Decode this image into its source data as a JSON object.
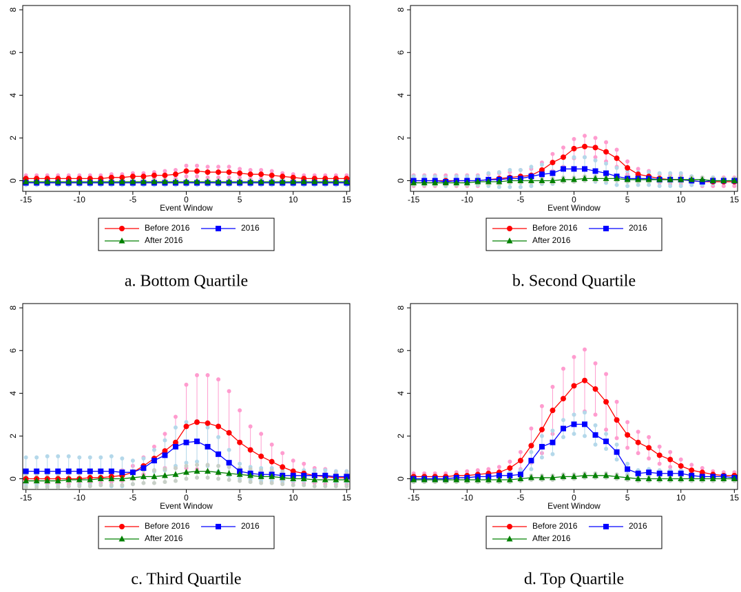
{
  "chart_data": [
    {
      "type": "line",
      "caption": "a. Bottom Quartile",
      "xlabel": "Event Window",
      "x": [
        -15,
        -14,
        -13,
        -12,
        -11,
        -10,
        -9,
        -8,
        -7,
        -6,
        -5,
        -4,
        -3,
        -2,
        -1,
        0,
        1,
        2,
        3,
        4,
        5,
        6,
        7,
        8,
        9,
        10,
        11,
        12,
        13,
        14,
        15
      ],
      "xlim": [
        -15.3,
        15.3
      ],
      "ylim": [
        -0.5,
        8.2
      ],
      "xticks": [
        -15,
        -10,
        -5,
        0,
        5,
        10,
        15
      ],
      "yticks": [
        0,
        2,
        4,
        6,
        8
      ],
      "series": [
        {
          "name": "Before 2016",
          "color": "#ff0000",
          "ci_color": "#ff9ccf",
          "marker": "circle",
          "values": [
            0.1,
            0.1,
            0.1,
            0.1,
            0.1,
            0.1,
            0.1,
            0.1,
            0.15,
            0.15,
            0.2,
            0.2,
            0.25,
            0.25,
            0.3,
            0.45,
            0.45,
            0.4,
            0.4,
            0.4,
            0.35,
            0.3,
            0.3,
            0.25,
            0.2,
            0.15,
            0.1,
            0.1,
            0.1,
            0.1,
            0.1
          ],
          "errors": [
            0.15,
            0.15,
            0.15,
            0.15,
            0.15,
            0.15,
            0.15,
            0.15,
            0.15,
            0.15,
            0.15,
            0.15,
            0.15,
            0.2,
            0.2,
            0.25,
            0.25,
            0.25,
            0.25,
            0.25,
            0.2,
            0.2,
            0.2,
            0.2,
            0.15,
            0.15,
            0.15,
            0.15,
            0.15,
            0.15,
            0.15
          ]
        },
        {
          "name": "2016",
          "color": "#0000ff",
          "ci_color": "#b4d8ea",
          "marker": "square",
          "values": [
            -0.1,
            -0.1,
            -0.1,
            -0.1,
            -0.1,
            -0.1,
            -0.1,
            -0.1,
            -0.1,
            -0.1,
            -0.1,
            -0.1,
            -0.1,
            -0.1,
            -0.1,
            -0.1,
            -0.1,
            -0.1,
            -0.1,
            -0.1,
            -0.1,
            -0.1,
            -0.1,
            -0.1,
            -0.1,
            -0.1,
            -0.1,
            -0.1,
            -0.1,
            -0.1,
            -0.1
          ],
          "errors": [
            0.1,
            0.1,
            0.1,
            0.1,
            0.1,
            0.1,
            0.1,
            0.1,
            0.1,
            0.1,
            0.1,
            0.1,
            0.1,
            0.1,
            0.1,
            0.1,
            0.1,
            0.1,
            0.1,
            0.1,
            0.1,
            0.1,
            0.1,
            0.1,
            0.1,
            0.1,
            0.1,
            0.1,
            0.1,
            0.1,
            0.1
          ]
        },
        {
          "name": "After 2016",
          "color": "#008000",
          "ci_color": "#c8d0c8",
          "marker": "triangle",
          "values": [
            -0.05,
            -0.05,
            -0.05,
            -0.05,
            -0.05,
            -0.05,
            -0.05,
            -0.05,
            -0.05,
            -0.05,
            -0.05,
            -0.05,
            -0.05,
            -0.05,
            -0.05,
            -0.05,
            -0.05,
            -0.05,
            -0.05,
            -0.05,
            -0.05,
            -0.05,
            -0.05,
            -0.05,
            -0.05,
            -0.05,
            -0.05,
            -0.05,
            -0.05,
            -0.05,
            -0.05
          ],
          "errors": [
            0.05,
            0.05,
            0.05,
            0.05,
            0.05,
            0.05,
            0.05,
            0.05,
            0.05,
            0.05,
            0.05,
            0.05,
            0.05,
            0.05,
            0.05,
            0.05,
            0.05,
            0.05,
            0.05,
            0.05,
            0.05,
            0.05,
            0.05,
            0.05,
            0.05,
            0.05,
            0.05,
            0.05,
            0.05,
            0.05,
            0.05
          ]
        }
      ]
    },
    {
      "type": "line",
      "caption": "b. Second Quartile",
      "xlabel": "Event Window",
      "x": [
        -15,
        -14,
        -13,
        -12,
        -11,
        -10,
        -9,
        -8,
        -7,
        -6,
        -5,
        -4,
        -3,
        -2,
        -1,
        0,
        1,
        2,
        3,
        4,
        5,
        6,
        7,
        8,
        9,
        10,
        11,
        12,
        13,
        14,
        15
      ],
      "xlim": [
        -15.3,
        15.3
      ],
      "ylim": [
        -0.5,
        8.2
      ],
      "xticks": [
        -15,
        -10,
        -5,
        0,
        5,
        10,
        15
      ],
      "yticks": [
        0,
        2,
        4,
        6,
        8
      ],
      "series": [
        {
          "name": "Before 2016",
          "color": "#ff0000",
          "ci_color": "#ff9ccf",
          "marker": "circle",
          "values": [
            0,
            0,
            0,
            0,
            0,
            0,
            0,
            0.05,
            0.1,
            0.15,
            0.2,
            0.25,
            0.5,
            0.85,
            1.1,
            1.5,
            1.6,
            1.55,
            1.35,
            1.05,
            0.6,
            0.3,
            0.2,
            0.1,
            0.05,
            0.05,
            0,
            -0.05,
            -0.05,
            -0.05,
            -0.05
          ],
          "errors": [
            0.25,
            0.25,
            0.25,
            0.25,
            0.25,
            0.25,
            0.25,
            0.25,
            0.25,
            0.25,
            0.3,
            0.3,
            0.35,
            0.4,
            0.45,
            0.45,
            0.5,
            0.45,
            0.45,
            0.4,
            0.3,
            0.25,
            0.25,
            0.2,
            0.2,
            0.2,
            0.2,
            0.2,
            0.2,
            0.2,
            0.2
          ]
        },
        {
          "name": "2016",
          "color": "#0000ff",
          "ci_color": "#b4d8ea",
          "marker": "square",
          "values": [
            0,
            0,
            0,
            -0.05,
            0,
            0,
            0,
            0.05,
            0.05,
            0.1,
            0.1,
            0.2,
            0.3,
            0.35,
            0.55,
            0.55,
            0.55,
            0.45,
            0.35,
            0.2,
            0.1,
            0.1,
            0.1,
            0.05,
            0.05,
            0.05,
            0,
            -0.05,
            0,
            0,
            0
          ],
          "errors": [
            0.2,
            0.2,
            0.2,
            0.2,
            0.2,
            0.2,
            0.2,
            0.3,
            0.35,
            0.4,
            0.4,
            0.45,
            0.45,
            0.5,
            0.55,
            0.55,
            0.55,
            0.5,
            0.45,
            0.4,
            0.35,
            0.3,
            0.3,
            0.3,
            0.3,
            0.3,
            0.2,
            0.15,
            0.15,
            0.1,
            0.1
          ]
        },
        {
          "name": "After 2016",
          "color": "#008000",
          "ci_color": "#c8d0c8",
          "marker": "triangle",
          "values": [
            -0.1,
            -0.1,
            -0.1,
            -0.1,
            -0.1,
            -0.1,
            -0.05,
            -0.05,
            -0.05,
            0,
            0,
            0,
            0,
            0,
            0.05,
            0.05,
            0.1,
            0.1,
            0.1,
            0.1,
            0.05,
            0.05,
            0.05,
            0.05,
            0.05,
            0.05,
            0.05,
            0.05,
            0,
            0,
            0
          ],
          "errors": [
            0.1,
            0.1,
            0.1,
            0.1,
            0.1,
            0.1,
            0.1,
            0.1,
            0.1,
            0.1,
            0.1,
            0.1,
            0.1,
            0.1,
            0.1,
            0.1,
            0.1,
            0.1,
            0.1,
            0.1,
            0.1,
            0.1,
            0.1,
            0.1,
            0.1,
            0.1,
            0.1,
            0.1,
            0.1,
            0.1,
            0.1
          ]
        }
      ]
    },
    {
      "type": "line",
      "caption": "c. Third Quartile",
      "xlabel": "Event Window",
      "x": [
        -15,
        -14,
        -13,
        -12,
        -11,
        -10,
        -9,
        -8,
        -7,
        -6,
        -5,
        -4,
        -3,
        -2,
        -1,
        0,
        1,
        2,
        3,
        4,
        5,
        6,
        7,
        8,
        9,
        10,
        11,
        12,
        13,
        14,
        15
      ],
      "xlim": [
        -15.3,
        15.3
      ],
      "ylim": [
        -0.5,
        8.2
      ],
      "xticks": [
        -15,
        -10,
        -5,
        0,
        5,
        10,
        15
      ],
      "yticks": [
        0,
        2,
        4,
        6,
        8
      ],
      "series": [
        {
          "name": "Before 2016",
          "color": "#ff0000",
          "ci_color": "#ff9ccf",
          "marker": "circle",
          "values": [
            0,
            0,
            0,
            0,
            0,
            0,
            0.05,
            0.05,
            0.1,
            0.15,
            0.3,
            0.6,
            0.95,
            1.3,
            1.7,
            2.45,
            2.65,
            2.6,
            2.45,
            2.15,
            1.7,
            1.35,
            1.05,
            0.8,
            0.55,
            0.35,
            0.25,
            0.15,
            0.1,
            0.05,
            0.05
          ],
          "errors": [
            0.25,
            0.25,
            0.25,
            0.25,
            0.25,
            0.25,
            0.25,
            0.25,
            0.25,
            0.25,
            0.3,
            0.4,
            0.55,
            0.8,
            1.2,
            1.95,
            2.2,
            2.25,
            2.2,
            1.95,
            1.5,
            1.1,
            1.05,
            0.8,
            0.65,
            0.5,
            0.45,
            0.35,
            0.35,
            0.3,
            0.3
          ]
        },
        {
          "name": "2016",
          "color": "#0000ff",
          "ci_color": "#b4d8ea",
          "marker": "square",
          "values": [
            0.35,
            0.35,
            0.35,
            0.35,
            0.35,
            0.35,
            0.35,
            0.35,
            0.35,
            0.3,
            0.3,
            0.5,
            0.85,
            1.1,
            1.5,
            1.7,
            1.75,
            1.5,
            1.15,
            0.75,
            0.35,
            0.25,
            0.2,
            0.2,
            0.15,
            0.15,
            0.15,
            0.15,
            0.15,
            0.1,
            0.1
          ],
          "errors": [
            0.65,
            0.65,
            0.7,
            0.7,
            0.7,
            0.65,
            0.65,
            0.65,
            0.7,
            0.65,
            0.55,
            0.45,
            0.5,
            0.7,
            0.9,
            0.95,
            0.95,
            0.9,
            0.8,
            0.6,
            0.35,
            0.3,
            0.3,
            0.3,
            0.3,
            0.25,
            0.25,
            0.25,
            0.25,
            0.25,
            0.25
          ]
        },
        {
          "name": "After 2016",
          "color": "#008000",
          "ci_color": "#c8d0c8",
          "marker": "triangle",
          "values": [
            -0.1,
            -0.1,
            -0.1,
            -0.1,
            -0.05,
            -0.05,
            -0.05,
            0,
            0,
            0,
            0.05,
            0.1,
            0.1,
            0.15,
            0.2,
            0.3,
            0.35,
            0.35,
            0.3,
            0.25,
            0.2,
            0.15,
            0.1,
            0.1,
            0.05,
            0,
            0,
            -0.05,
            -0.05,
            -0.05,
            -0.05
          ],
          "errors": [
            0.3,
            0.3,
            0.3,
            0.3,
            0.3,
            0.3,
            0.3,
            0.3,
            0.3,
            0.3,
            0.3,
            0.3,
            0.3,
            0.3,
            0.3,
            0.3,
            0.3,
            0.3,
            0.3,
            0.3,
            0.3,
            0.3,
            0.3,
            0.3,
            0.3,
            0.3,
            0.3,
            0.3,
            0.3,
            0.3,
            0.3
          ]
        }
      ]
    },
    {
      "type": "line",
      "caption": "d. Top Quartile",
      "xlabel": "Event Window",
      "x": [
        -15,
        -14,
        -13,
        -12,
        -11,
        -10,
        -9,
        -8,
        -7,
        -6,
        -5,
        -4,
        -3,
        -2,
        -1,
        0,
        1,
        2,
        3,
        4,
        5,
        6,
        7,
        8,
        9,
        10,
        11,
        12,
        13,
        14,
        15
      ],
      "xlim": [
        -15.3,
        15.3
      ],
      "ylim": [
        -0.5,
        8.2
      ],
      "xticks": [
        -15,
        -10,
        -5,
        0,
        5,
        10,
        15
      ],
      "yticks": [
        0,
        2,
        4,
        6,
        8
      ],
      "series": [
        {
          "name": "Before 2016",
          "color": "#ff0000",
          "ci_color": "#ff9ccf",
          "marker": "circle",
          "values": [
            0.1,
            0.1,
            0.1,
            0.1,
            0.15,
            0.15,
            0.2,
            0.25,
            0.3,
            0.5,
            0.85,
            1.55,
            2.3,
            3.2,
            3.75,
            4.35,
            4.6,
            4.2,
            3.6,
            2.75,
            2.05,
            1.7,
            1.45,
            1.1,
            0.9,
            0.6,
            0.4,
            0.3,
            0.2,
            0.15,
            0.15
          ],
          "errors": [
            0.15,
            0.15,
            0.15,
            0.15,
            0.15,
            0.2,
            0.2,
            0.2,
            0.25,
            0.3,
            0.4,
            0.8,
            1.1,
            1.1,
            1.4,
            1.35,
            1.45,
            1.2,
            1.3,
            0.85,
            0.6,
            0.5,
            0.5,
            0.4,
            0.35,
            0.3,
            0.25,
            0.2,
            0.15,
            0.15,
            0.15
          ]
        },
        {
          "name": "2016",
          "color": "#0000ff",
          "ci_color": "#b4d8ea",
          "marker": "square",
          "values": [
            0,
            0,
            0,
            0,
            0.05,
            0.05,
            0.1,
            0.1,
            0.15,
            0.15,
            0.2,
            0.85,
            1.5,
            1.7,
            2.35,
            2.55,
            2.55,
            2.05,
            1.75,
            1.25,
            0.45,
            0.25,
            0.3,
            0.25,
            0.25,
            0.25,
            0.15,
            0.1,
            0.1,
            0.1,
            0.05
          ],
          "errors": [
            0.15,
            0.15,
            0.15,
            0.15,
            0.15,
            0.15,
            0.15,
            0.15,
            0.15,
            0.15,
            0.2,
            0.4,
            0.5,
            0.55,
            0.4,
            0.45,
            0.55,
            0.45,
            0.35,
            0.35,
            0.25,
            0.15,
            0.15,
            0.15,
            0.15,
            0.15,
            0.1,
            0.1,
            0.1,
            0.1,
            0.1
          ]
        },
        {
          "name": "After 2016",
          "color": "#008000",
          "ci_color": "#c8d0c8",
          "marker": "triangle",
          "values": [
            -0.05,
            -0.05,
            -0.05,
            -0.05,
            -0.05,
            -0.05,
            -0.05,
            -0.05,
            -0.05,
            -0.05,
            0,
            0.05,
            0.05,
            0.05,
            0.1,
            0.1,
            0.15,
            0.15,
            0.15,
            0.1,
            0.05,
            0,
            0,
            0,
            0,
            0,
            0,
            0,
            0,
            0,
            0
          ],
          "errors": [
            0.1,
            0.1,
            0.1,
            0.1,
            0.1,
            0.1,
            0.1,
            0.1,
            0.1,
            0.1,
            0.1,
            0.1,
            0.1,
            0.1,
            0.1,
            0.1,
            0.1,
            0.1,
            0.1,
            0.1,
            0.1,
            0.1,
            0.1,
            0.1,
            0.1,
            0.1,
            0.1,
            0.1,
            0.1,
            0.1,
            0.1
          ]
        }
      ]
    }
  ]
}
